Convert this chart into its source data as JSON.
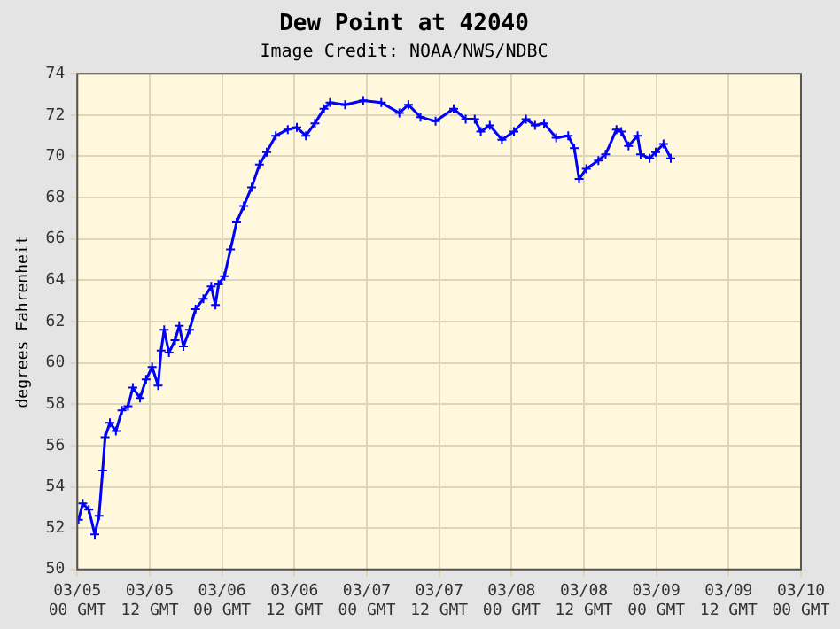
{
  "chart_data": {
    "type": "line",
    "title": "Dew Point at 42040",
    "subtitle": "Image Credit: NOAA/NWS/NDBC",
    "ylabel": "degrees Fahrenheit",
    "xlim": [
      "--03-05T00:00",
      "--03-10T00:00"
    ],
    "xticks": [
      {
        "value": "--03-05T00:00",
        "label": "03/05 00 GMT"
      },
      {
        "value": "--03-05T12:00",
        "label": "03/05 12 GMT"
      },
      {
        "value": "--03-06T00:00",
        "label": "03/06 00 GMT"
      },
      {
        "value": "--03-06T12:00",
        "label": "03/06 12 GMT"
      },
      {
        "value": "--03-07T00:00",
        "label": "03/07 00 GMT"
      },
      {
        "value": "--03-07T12:00",
        "label": "03/07 12 GMT"
      },
      {
        "value": "--03-08T00:00",
        "label": "03/08 00 GMT"
      },
      {
        "value": "--03-08T12:00",
        "label": "03/08 12 GMT"
      },
      {
        "value": "--03-09T00:00",
        "label": "03/09 00 GMT"
      },
      {
        "value": "--03-09T12:00",
        "label": "03/09 12 GMT"
      },
      {
        "value": "--03-10T00:00",
        "label": "03/10 00 GMT"
      }
    ],
    "ylim": [
      50,
      74
    ],
    "yticks": [
      50,
      52,
      54,
      56,
      58,
      60,
      62,
      64,
      66,
      68,
      70,
      72,
      74
    ],
    "grid": true,
    "legend": false,
    "marker": "cross",
    "line_style": "solid",
    "series": [
      {
        "color": "#0000ff",
        "x": [
          "--03-05T00:12",
          "--03-05T00:54",
          "--03-05T01:54",
          "--03-05T02:54",
          "--03-05T03:36",
          "--03-05T04:12",
          "--03-05T04:36",
          "--03-05T05:24",
          "--03-05T06:24",
          "--03-05T07:24",
          "--03-05T08:24",
          "--03-05T09:12",
          "--03-05T10:24",
          "--03-05T11:24",
          "--03-05T12:24",
          "--03-05T13:24",
          "--03-05T13:54",
          "--03-05T14:24",
          "--03-05T15:12",
          "--03-05T16:12",
          "--03-05T16:54",
          "--03-05T17:36",
          "--03-05T18:36",
          "--03-05T19:36",
          "--03-05T20:54",
          "--03-05T22:12",
          "--03-05T22:54",
          "--03-05T23:24",
          "--03-06T00:24",
          "--03-06T01:24",
          "--03-06T02:24",
          "--03-06T03:36",
          "--03-06T04:54",
          "--03-06T06:12",
          "--03-06T07:24",
          "--03-06T08:54",
          "--03-06T10:54",
          "--03-06T12:24",
          "--03-06T13:54",
          "--03-06T15:24",
          "--03-06T16:54",
          "--03-06T17:54",
          "--03-06T20:24",
          "--03-06T23:24",
          "--03-07T02:24",
          "--03-07T05:24",
          "--03-07T06:54",
          "--03-07T08:54",
          "--03-07T11:24",
          "--03-07T14:24",
          "--03-07T16:24",
          "--03-07T17:54",
          "--03-07T18:54",
          "--03-07T20:24",
          "--03-07T22:24",
          "--03-08T00:24",
          "--03-08T02:24",
          "--03-08T03:54",
          "--03-08T05:24",
          "--03-08T07:24",
          "--03-08T09:24",
          "--03-08T10:24",
          "--03-08T11:12",
          "--03-08T12:24",
          "--03-08T14:24",
          "--03-08T15:36",
          "--03-08T17:24",
          "--03-08T18:12",
          "--03-08T19:24",
          "--03-08T20:54",
          "--03-08T21:24",
          "--03-08T22:54",
          "--03-08T23:54",
          "--03-09T01:12",
          "--03-09T02:24"
        ],
        "values": [
          52.4,
          53.2,
          52.9,
          51.7,
          52.6,
          54.8,
          56.4,
          57.1,
          56.7,
          57.7,
          57.9,
          58.8,
          58.3,
          59.2,
          59.8,
          58.9,
          60.6,
          61.6,
          60.5,
          61.1,
          61.8,
          60.8,
          61.6,
          62.6,
          63.1,
          63.7,
          62.8,
          63.8,
          64.2,
          65.5,
          66.8,
          67.6,
          68.5,
          69.6,
          70.2,
          71.0,
          71.3,
          71.4,
          71.0,
          71.6,
          72.3,
          72.6,
          72.5,
          72.7,
          72.6,
          72.1,
          72.5,
          71.9,
          71.7,
          72.3,
          71.8,
          71.8,
          71.2,
          71.5,
          70.8,
          71.2,
          71.8,
          71.5,
          71.6,
          70.9,
          71.0,
          70.4,
          68.9,
          69.4,
          69.8,
          70.1,
          71.3,
          71.2,
          70.5,
          71.0,
          70.1,
          69.9,
          70.2,
          70.6,
          69.9
        ]
      }
    ]
  }
}
